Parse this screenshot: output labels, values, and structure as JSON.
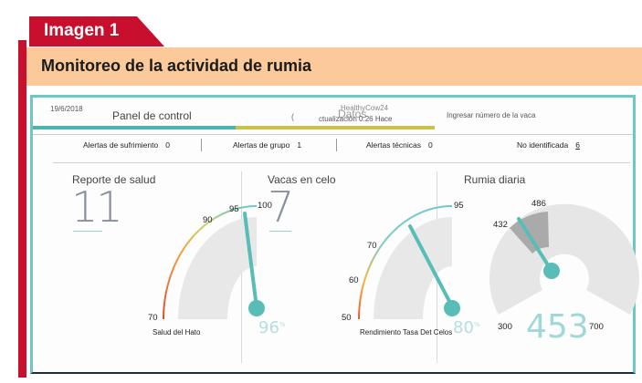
{
  "figure": {
    "tag": "Imagen 1",
    "heading": "Monitoreo de la actividad de rumia"
  },
  "topbar": {
    "date": "19/6/2018",
    "panel_title": "Panel de control",
    "app_name": "HealthyCow24",
    "data_label": "Datos",
    "update_text": "ctualización 0:26 Hace",
    "loading_glyph": "(",
    "search_placeholder": "Ingresar número de la vaca"
  },
  "alerts": [
    {
      "label": "Alertas de sufrimiento",
      "value": "0"
    },
    {
      "label": "Alertas de grupo",
      "value": "1"
    },
    {
      "label": "Alertas técnicas",
      "value": "0"
    },
    {
      "label": "No identificada",
      "value": "6"
    }
  ],
  "health": {
    "title": "Reporte de salud",
    "count": "11",
    "gauge": {
      "ticks": [
        "70",
        "90",
        "95",
        "100"
      ],
      "value_label": "96",
      "unit": "%",
      "caption": "Salud del Hato"
    }
  },
  "heat": {
    "title": "Vacas en celo",
    "count": "7",
    "gauge": {
      "ticks": [
        "50",
        "60",
        "70",
        "95"
      ],
      "value_label": "80",
      "unit": "%",
      "caption": "Rendimiento Tasa Det Celos"
    }
  },
  "rumination": {
    "title": "Rumia diaria",
    "value": "453",
    "ticks": [
      "300",
      "432",
      "486",
      "700"
    ]
  },
  "colors": {
    "accent": "#5cbfba",
    "brand_red": "#c8102e",
    "header_bg": "#fbc99a",
    "olive": "#c9c449"
  }
}
